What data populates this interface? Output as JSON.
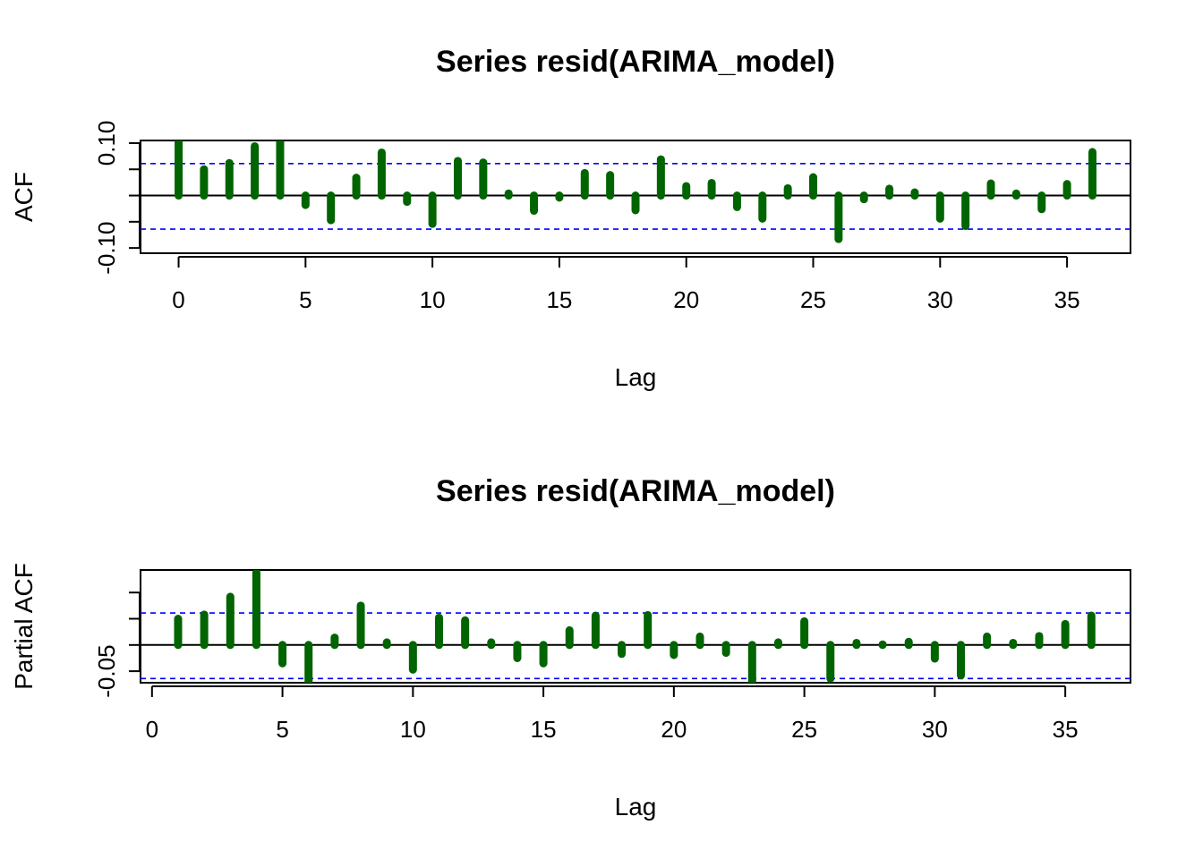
{
  "figure": {
    "bar_color": "#006400",
    "ci_color": "#0000ff",
    "axis_color": "#000000"
  },
  "chart_data": [
    {
      "type": "bar",
      "title": "Series  resid(ARIMA_model)",
      "xlabel": "Lag",
      "ylabel": "ACF",
      "xlim": [
        -1.5,
        37.5
      ],
      "ylim": [
        -0.11,
        0.105
      ],
      "x_ticks": [
        0,
        5,
        10,
        15,
        20,
        25,
        30,
        35
      ],
      "x_tick_labels": [
        "0",
        "5",
        "10",
        "15",
        "20",
        "25",
        "30",
        "35"
      ],
      "y_ticks": [
        -0.1,
        -0.05,
        0,
        0.05,
        0.1
      ],
      "y_tick_labels": [
        "-0.10",
        "",
        "",
        "",
        "0.10"
      ],
      "ci": [
        0.061,
        -0.064
      ],
      "lags": [
        0,
        1,
        2,
        3,
        4,
        5,
        6,
        7,
        8,
        9,
        10,
        11,
        12,
        13,
        14,
        15,
        16,
        17,
        18,
        19,
        20,
        21,
        22,
        23,
        24,
        25,
        26,
        27,
        28,
        29,
        30,
        31,
        32,
        33,
        34,
        35,
        36
      ],
      "values": [
        0.107,
        0.05,
        0.062,
        0.094,
        0.11,
        -0.018,
        -0.047,
        0.034,
        0.082,
        -0.012,
        -0.054,
        0.066,
        0.063,
        0.004,
        -0.029,
        -0.004,
        0.043,
        0.039,
        -0.028,
        0.069,
        0.018,
        0.024,
        -0.022,
        -0.044,
        0.014,
        0.035,
        -0.083,
        -0.007,
        0.013,
        0.006,
        -0.044,
        -0.058,
        0.023,
        0.004,
        -0.026,
        0.022,
        0.083
      ]
    },
    {
      "type": "bar",
      "title": "Series  resid(ARIMA_model)",
      "xlabel": "Lag",
      "ylabel": "Partial ACF",
      "xlim": [
        -0.44,
        37.5
      ],
      "ylim": [
        -0.072,
        0.143
      ],
      "x_ticks": [
        0,
        5,
        10,
        15,
        20,
        25,
        30,
        35
      ],
      "x_tick_labels": [
        "0",
        "5",
        "10",
        "15",
        "20",
        "25",
        "30",
        "35"
      ],
      "y_ticks": [
        -0.05,
        0,
        0.05,
        0.1
      ],
      "y_tick_labels": [
        "-0.05",
        "",
        "",
        ""
      ],
      "ci": [
        0.061,
        -0.064
      ],
      "lags": [
        1,
        2,
        3,
        4,
        5,
        6,
        7,
        8,
        9,
        10,
        11,
        12,
        13,
        14,
        15,
        16,
        17,
        18,
        19,
        20,
        21,
        22,
        23,
        24,
        25,
        26,
        27,
        28,
        29,
        30,
        31,
        32,
        33,
        34,
        35,
        36
      ],
      "values": [
        0.05,
        0.058,
        0.092,
        0.138,
        -0.035,
        -0.072,
        0.014,
        0.075,
        0.005,
        -0.047,
        0.052,
        0.047,
        0.005,
        -0.025,
        -0.035,
        0.028,
        0.056,
        -0.017,
        0.057,
        -0.019,
        0.016,
        -0.015,
        -0.069,
        0.005,
        0.045,
        -0.064,
        0.004,
        0.001,
        0.006,
        -0.026,
        -0.058,
        0.016,
        0.004,
        0.017,
        0.04,
        0.056
      ]
    }
  ]
}
